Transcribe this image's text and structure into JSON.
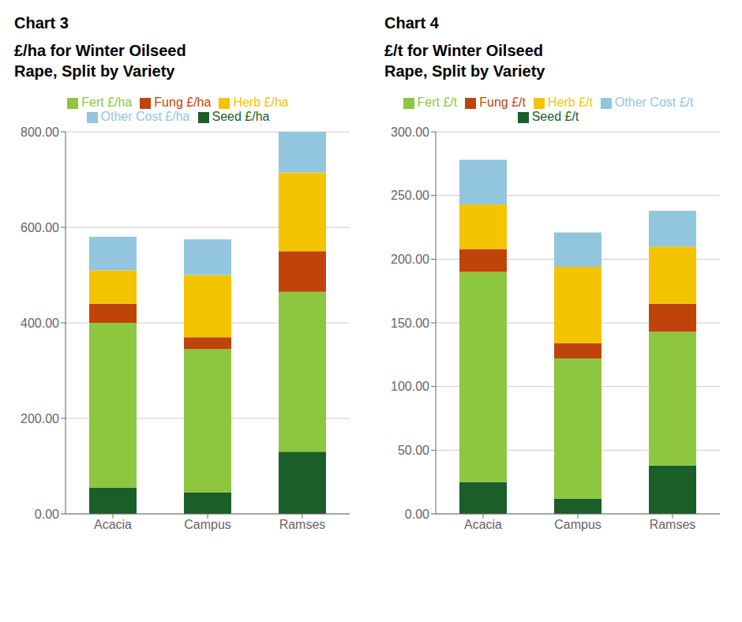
{
  "chart_data": [
    {
      "type": "bar",
      "title": "Chart 3",
      "subtitle": "£/ha for Winter Oilseed\nRape, Split by Variety",
      "categories": [
        "Acacia",
        "Campus",
        "Ramses"
      ],
      "series": [
        {
          "name": "Seed £/ha",
          "color": "#1a5e2a",
          "values": [
            55,
            45,
            130
          ]
        },
        {
          "name": "Fert £/ha",
          "color": "#8dc63f",
          "values": [
            345,
            300,
            335
          ]
        },
        {
          "name": "Fung £/ha",
          "color": "#c0440a",
          "values": [
            40,
            25,
            85
          ]
        },
        {
          "name": "Herb £/ha",
          "color": "#f5c400",
          "values": [
            70,
            130,
            165
          ]
        },
        {
          "name": "Other Cost £/ha",
          "color": "#92c5de",
          "values": [
            70,
            75,
            85
          ]
        }
      ],
      "stacked": true,
      "ylim": [
        0,
        800
      ],
      "yticks": [
        {
          "value": 0,
          "label": "0.00"
        },
        {
          "value": 200,
          "label": "200.00"
        },
        {
          "value": 400,
          "label": "400.00"
        },
        {
          "value": 600,
          "label": "600.00"
        },
        {
          "value": 800,
          "label": "800.00"
        }
      ],
      "grid": true,
      "legend": "top"
    },
    {
      "type": "bar",
      "title": "Chart 4",
      "subtitle": "£/t for Winter Oilseed\nRape, Split by Variety",
      "categories": [
        "Acacia",
        "Campus",
        "Ramses"
      ],
      "series": [
        {
          "name": "Seed £/t",
          "color": "#1a5e2a",
          "values": [
            25,
            12,
            38
          ]
        },
        {
          "name": "Fert £/t",
          "color": "#8dc63f",
          "values": [
            165,
            110,
            105
          ]
        },
        {
          "name": "Fung £/t",
          "color": "#c0440a",
          "values": [
            18,
            12,
            22
          ]
        },
        {
          "name": "Herb £/t",
          "color": "#f5c400",
          "values": [
            35,
            60,
            45
          ]
        },
        {
          "name": "Other Cost £/t",
          "color": "#92c5de",
          "values": [
            35,
            27,
            28
          ]
        }
      ],
      "stacked": true,
      "ylim": [
        0,
        300
      ],
      "yticks": [
        {
          "value": 0,
          "label": "0.00"
        },
        {
          "value": 50,
          "label": "50.00"
        },
        {
          "value": 100,
          "label": "100.00"
        },
        {
          "value": 150,
          "label": "150.00"
        },
        {
          "value": 200,
          "label": "200.00"
        },
        {
          "value": 250,
          "label": "250.00"
        },
        {
          "value": 300,
          "label": "300.00"
        }
      ],
      "grid": true,
      "legend": "top"
    }
  ]
}
